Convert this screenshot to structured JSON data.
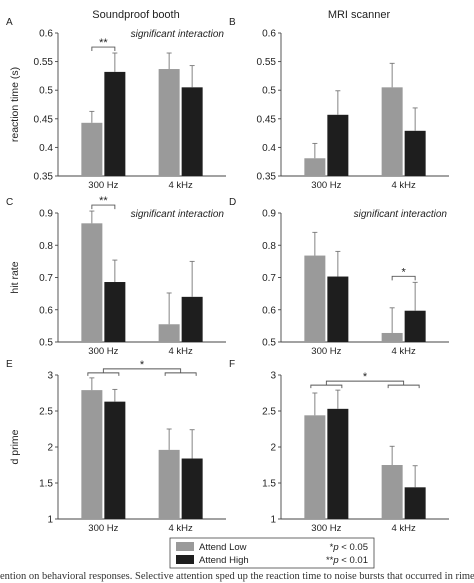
{
  "colors": {
    "attend_low": "#9a9a9a",
    "attend_high": "#1e1e1e",
    "axis": "#444444"
  },
  "legend": {
    "placement": "bottom-center",
    "attend_low": "Attend Low",
    "attend_high": "Attend High",
    "p05_marker": "*",
    "p05_var": "p",
    "p05_rest": " < 0.05",
    "p01_marker": "**",
    "p01_var": "p",
    "p01_rest": " < 0.01"
  },
  "caption": "ention on behavioral responses. Selective attention sped up the reaction time to noise bursts that occurred in rime",
  "chart_data": [
    {
      "id": "A",
      "panel_label": "A",
      "type": "bar",
      "title": "Soundproof booth",
      "ylabel": "reaction time (s)",
      "ylim": [
        0.35,
        0.6
      ],
      "yticks": [
        0.35,
        0.4,
        0.45,
        0.5,
        0.55,
        0.6
      ],
      "categories": [
        "300 Hz",
        "4 kHz"
      ],
      "series": [
        {
          "key": "attend_low",
          "values": [
            0.443,
            0.537
          ],
          "errors": [
            0.02,
            0.028
          ]
        },
        {
          "key": "attend_high",
          "values": [
            0.532,
            0.505
          ],
          "errors": [
            0.033,
            0.038
          ]
        }
      ],
      "annotation": "significant interaction",
      "significance": [
        {
          "type": "within",
          "category": 0,
          "label": "**"
        }
      ]
    },
    {
      "id": "B",
      "panel_label": "B",
      "type": "bar",
      "title": "MRI scanner",
      "ylabel": "",
      "ylim": [
        0.35,
        0.6
      ],
      "yticks": [
        0.35,
        0.4,
        0.45,
        0.5,
        0.55,
        0.6
      ],
      "categories": [
        "300 Hz",
        "4 kHz"
      ],
      "series": [
        {
          "key": "attend_low",
          "values": [
            0.381,
            0.505
          ],
          "errors": [
            0.026,
            0.042
          ]
        },
        {
          "key": "attend_high",
          "values": [
            0.457,
            0.429
          ],
          "errors": [
            0.042,
            0.04
          ]
        }
      ],
      "annotation": "",
      "significance": []
    },
    {
      "id": "C",
      "panel_label": "C",
      "type": "bar",
      "title": "",
      "ylabel": "hit rate",
      "ylim": [
        0.5,
        0.9
      ],
      "yticks": [
        0.5,
        0.6,
        0.7,
        0.8,
        0.9
      ],
      "categories": [
        "300 Hz",
        "4 kHz"
      ],
      "series": [
        {
          "key": "attend_low",
          "values": [
            0.868,
            0.555
          ],
          "errors": [
            0.038,
            0.097
          ]
        },
        {
          "key": "attend_high",
          "values": [
            0.686,
            0.64
          ],
          "errors": [
            0.068,
            0.11
          ]
        }
      ],
      "annotation": "significant interaction",
      "significance": [
        {
          "type": "within",
          "category": 0,
          "label": "**"
        }
      ]
    },
    {
      "id": "D",
      "panel_label": "D",
      "type": "bar",
      "title": "",
      "ylabel": "",
      "ylim": [
        0.5,
        0.9
      ],
      "yticks": [
        0.5,
        0.6,
        0.7,
        0.8,
        0.9
      ],
      "categories": [
        "300 Hz",
        "4 kHz"
      ],
      "series": [
        {
          "key": "attend_low",
          "values": [
            0.768,
            0.528
          ],
          "errors": [
            0.072,
            0.078
          ]
        },
        {
          "key": "attend_high",
          "values": [
            0.703,
            0.597
          ],
          "errors": [
            0.078,
            0.088
          ]
        }
      ],
      "annotation": "significant interaction",
      "significance": [
        {
          "type": "within",
          "category": 1,
          "label": "*"
        }
      ]
    },
    {
      "id": "E",
      "panel_label": "E",
      "type": "bar",
      "title": "",
      "ylabel": "d prime",
      "ylim": [
        1,
        3
      ],
      "yticks": [
        1,
        1.5,
        2,
        2.5,
        3
      ],
      "categories": [
        "300 Hz",
        "4 kHz"
      ],
      "series": [
        {
          "key": "attend_low",
          "values": [
            2.79,
            1.96
          ],
          "errors": [
            0.17,
            0.29
          ]
        },
        {
          "key": "attend_high",
          "values": [
            2.63,
            1.84
          ],
          "errors": [
            0.17,
            0.4
          ]
        }
      ],
      "annotation": "",
      "significance": [
        {
          "type": "between",
          "label": "*"
        }
      ]
    },
    {
      "id": "F",
      "panel_label": "F",
      "type": "bar",
      "title": "",
      "ylabel": "",
      "ylim": [
        1,
        3
      ],
      "yticks": [
        1,
        1.5,
        2,
        2.5,
        3
      ],
      "categories": [
        "300 Hz",
        "4 kHz"
      ],
      "series": [
        {
          "key": "attend_low",
          "values": [
            2.44,
            1.75
          ],
          "errors": [
            0.31,
            0.26
          ]
        },
        {
          "key": "attend_high",
          "values": [
            2.53,
            1.44
          ],
          "errors": [
            0.26,
            0.3
          ]
        }
      ],
      "annotation": "",
      "significance": [
        {
          "type": "between",
          "label": "*"
        }
      ]
    }
  ]
}
